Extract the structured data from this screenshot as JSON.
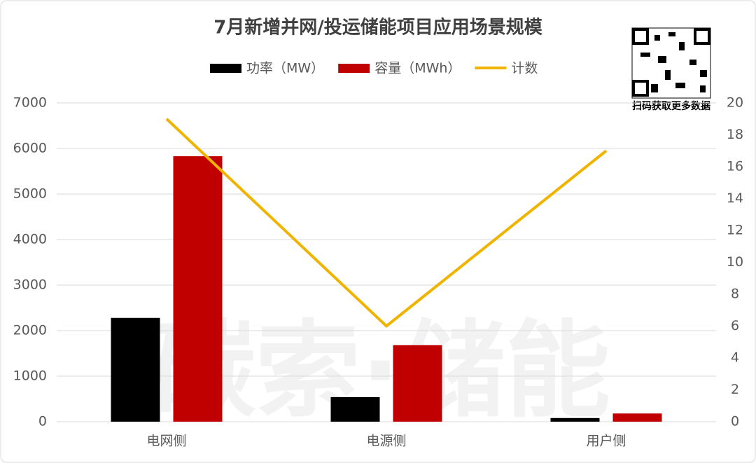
{
  "chart_data": {
    "type": "bar",
    "title": "7月新增并网/投运储能项目应用场景规模",
    "categories": [
      "电网侧",
      "电源侧",
      "用户侧"
    ],
    "series": [
      {
        "name": "功率（MW）",
        "type": "bar",
        "color": "#000000",
        "values": [
          2280,
          540,
          80
        ]
      },
      {
        "name": "容量（MWh）",
        "type": "bar",
        "color": "#c00000",
        "values": [
          5830,
          1680,
          180
        ]
      },
      {
        "name": "计数",
        "type": "line",
        "color": "#f0b400",
        "axis": "y2",
        "values": [
          19,
          6,
          17
        ]
      }
    ],
    "ylim": [
      0,
      7000
    ],
    "yticks": [
      0,
      1000,
      2000,
      3000,
      4000,
      5000,
      6000,
      7000
    ],
    "y2lim": [
      0,
      20
    ],
    "y2ticks": [
      0,
      2,
      4,
      6,
      8,
      10,
      12,
      14,
      16,
      18,
      20
    ],
    "grid": true,
    "legend": "top",
    "watermark": "碳索·储能",
    "qr_caption": "扫码获取更多数据"
  }
}
